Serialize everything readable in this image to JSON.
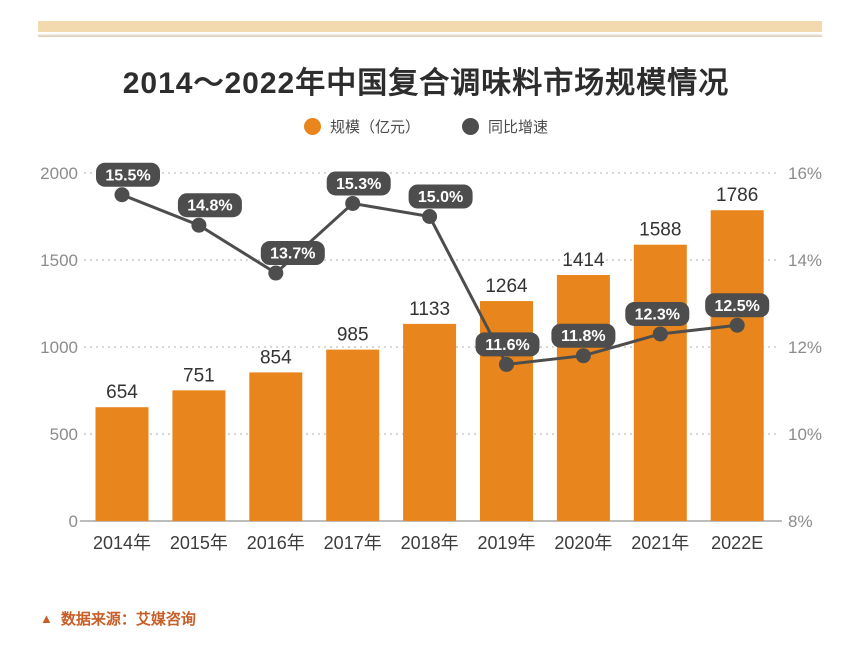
{
  "header": {
    "title": "2014～2022年中国复合调味料市场规模情况"
  },
  "legend": {
    "items": [
      {
        "label": "规模（亿元）",
        "color": "#E8861D"
      },
      {
        "label": "同比增速",
        "color": "#4D4D4D"
      }
    ]
  },
  "source": {
    "marker": "▲",
    "text": "数据来源：艾媒咨询"
  },
  "chart_data": {
    "type": "bar",
    "title": "2014～2022年中国复合调味料市场规模情况",
    "categories": [
      "2014年",
      "2015年",
      "2016年",
      "2017年",
      "2018年",
      "2019年",
      "2020年",
      "2021年",
      "2022E"
    ],
    "series": [
      {
        "name": "规模（亿元）",
        "type": "bar",
        "axis": "left",
        "color": "#E8861D",
        "values": [
          654,
          751,
          854,
          985,
          1133,
          1264,
          1414,
          1588,
          1786
        ]
      },
      {
        "name": "同比增速",
        "type": "line",
        "axis": "right",
        "color": "#4D4D4D",
        "values": [
          15.5,
          14.8,
          13.7,
          15.3,
          15.0,
          11.6,
          11.8,
          12.3,
          12.5
        ],
        "labels": [
          "15.5%",
          "14.8%",
          "13.7%",
          "15.3%",
          "15.0%",
          "11.6%",
          "11.8%",
          "12.3%",
          "12.5%"
        ]
      }
    ],
    "left_axis": {
      "label": "",
      "min": 0,
      "max": 2000,
      "ticks": [
        "0",
        "500",
        "1000",
        "1500",
        "2000"
      ]
    },
    "right_axis": {
      "label": "",
      "min": 8,
      "max": 16,
      "ticks": [
        "8%",
        "10%",
        "12%",
        "14%",
        "16%"
      ]
    },
    "grid": "horizontal-dotted",
    "legend_position": "top-center"
  }
}
